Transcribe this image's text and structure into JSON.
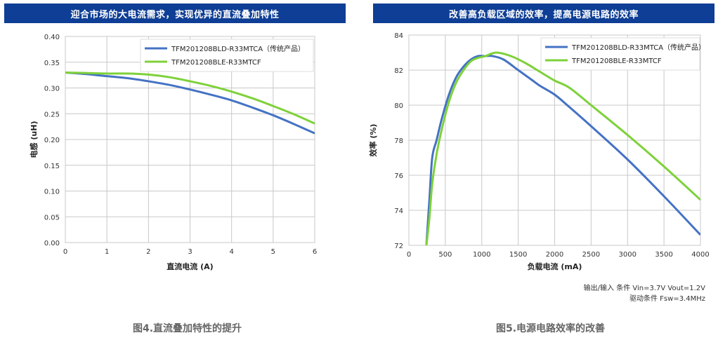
{
  "charts": [
    {
      "banner": "迎合市场的大电流需求，实现优异的直流叠加特性",
      "caption": "图4.直流叠加特性的提升",
      "chart_data": {
        "type": "line",
        "xlabel": "直流电流 (A)",
        "ylabel": "电感 (uH)",
        "xlim": [
          0,
          6
        ],
        "ylim": [
          0,
          0.4
        ],
        "xticks": [
          "0",
          "1",
          "2",
          "3",
          "4",
          "5",
          "6"
        ],
        "yticks": [
          "0.00",
          "0.05",
          "0.10",
          "0.15",
          "0.20",
          "0.25",
          "0.30",
          "0.35",
          "0.40"
        ],
        "grid": true,
        "legend_position": "top-right",
        "series": [
          {
            "name": "TFM201208BLD-R33MTCA（传统产品）",
            "color": "#4472c4",
            "x": [
              0,
              0.5,
              1,
              1.5,
              2,
              2.5,
              3,
              3.5,
              4,
              4.5,
              5,
              5.5,
              6
            ],
            "y": [
              0.33,
              0.327,
              0.323,
              0.319,
              0.313,
              0.306,
              0.297,
              0.287,
              0.276,
              0.262,
              0.247,
              0.23,
              0.212
            ]
          },
          {
            "name": "TFM201208BLE-R33MTCF",
            "color": "#7ed13a",
            "x": [
              0,
              0.5,
              1,
              1.5,
              2,
              2.5,
              3,
              3.5,
              4,
              4.5,
              5,
              5.5,
              6
            ],
            "y": [
              0.33,
              0.329,
              0.328,
              0.328,
              0.326,
              0.321,
              0.313,
              0.304,
              0.293,
              0.28,
              0.265,
              0.249,
              0.231
            ]
          }
        ]
      }
    },
    {
      "banner": "改善高负载区域的效率，提高电源电路的效率",
      "caption": "图5.电源电路效率的改善",
      "conditions": [
        "输出/输入 条件 Vin=3.7V Vout=1.2V",
        "驱动条件 Fsw=3.4MHz"
      ],
      "chart_data": {
        "type": "line",
        "xlabel": "负载电流 (mA)",
        "ylabel": "效率 (%)",
        "xlim": [
          0,
          4000
        ],
        "ylim": [
          72,
          84
        ],
        "xticks": [
          "0",
          "500",
          "1000",
          "1500",
          "2000",
          "2500",
          "3000",
          "3500",
          "4000"
        ],
        "yticks": [
          "72",
          "74",
          "76",
          "78",
          "80",
          "82",
          "84"
        ],
        "grid": true,
        "legend_position": "top-right",
        "series": [
          {
            "name": "TFM201208BLD-R33MTCA（传统产品）",
            "color": "#4472c4",
            "x": [
              240,
              280,
              320,
              380,
              450,
              550,
              650,
              750,
              850,
              950,
              1050,
              1150,
              1300,
              1500,
              1700,
              1800,
              2000,
              2200,
              2500,
              3000,
              3500,
              4000
            ],
            "y": [
              72.0,
              74.5,
              77.0,
              78.0,
              79.2,
              80.6,
              81.6,
              82.2,
              82.6,
              82.8,
              82.8,
              82.8,
              82.6,
              82.0,
              81.4,
              81.1,
              80.6,
              79.9,
              78.8,
              76.9,
              74.8,
              72.6
            ]
          },
          {
            "name": "TFM201208BLE-R33MTCF",
            "color": "#7ed13a",
            "x": [
              240,
              280,
              320,
              380,
              450,
              550,
              650,
              750,
              850,
              950,
              1050,
              1200,
              1400,
              1600,
              1800,
              2000,
              2200,
              2500,
              3000,
              3500,
              4000
            ],
            "y": [
              72.0,
              73.5,
              75.5,
              77.2,
              78.6,
              80.2,
              81.3,
              82.0,
              82.5,
              82.7,
              82.8,
              83.0,
              82.8,
              82.4,
              81.9,
              81.4,
              81.0,
              80.0,
              78.3,
              76.5,
              74.6
            ]
          }
        ]
      }
    }
  ]
}
